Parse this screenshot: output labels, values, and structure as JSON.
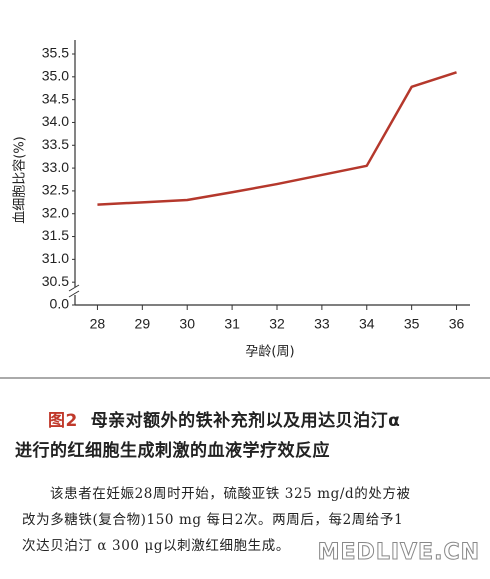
{
  "chart_data": {
    "type": "line",
    "ylabel": "血细胞比容(%)",
    "xlabel": "孕龄(周)",
    "x": [
      28,
      29,
      30,
      31,
      32,
      33,
      34,
      35,
      36
    ],
    "values": [
      32.2,
      32.25,
      32.3,
      32.47,
      32.65,
      32.85,
      33.05,
      34.78,
      35.1
    ],
    "color": "#b5382c",
    "xlim": [
      27.5,
      36.3
    ],
    "xticks": [
      28,
      29,
      30,
      31,
      32,
      33,
      34,
      35,
      36
    ],
    "ylim": [
      0,
      35.5
    ],
    "yticks": [
      {
        "value": 0,
        "label": "0.0"
      },
      30.5,
      {
        "value": 31,
        "label": "31.0"
      },
      31.5,
      {
        "value": 32,
        "label": "32.0"
      },
      32.5,
      {
        "value": 33,
        "label": "33.0"
      },
      33.5,
      {
        "value": 34,
        "label": "34.0"
      },
      34.5,
      {
        "value": 35,
        "label": "35.0"
      },
      35.5
    ],
    "axis_break": true,
    "grid": false
  },
  "caption": {
    "label": "图2",
    "title": [
      "母亲对额外的铁补充剂以及用达贝泊汀α",
      "进行的红细胞生成刺激的血液学疗效反应"
    ],
    "body": [
      "该患者在妊娠28周时开始，硫酸亚铁 325 mg/d的处方被",
      "改为多糖铁(复合物)150 mg 每日2次。两周后，每2周给予1",
      "次达贝泊汀 α 300 μg以刺激红细胞生成。"
    ]
  },
  "watermark": "MEDLIVE.CN"
}
